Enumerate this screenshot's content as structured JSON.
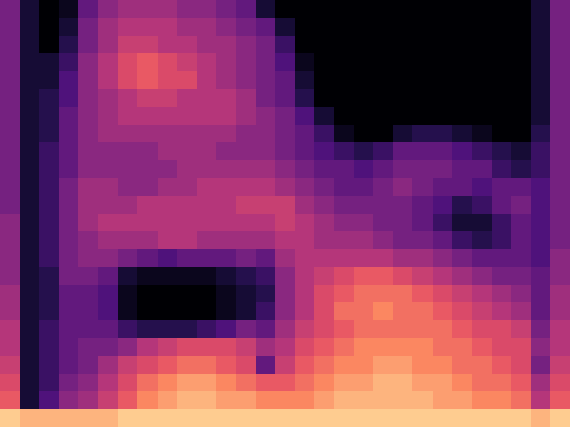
{
  "chart_data": {
    "type": "heatmap",
    "color": "magma",
    "tick_labels": false,
    "zlim": [
      0,
      1
    ],
    "cells": [
      [
        0.35,
        0.1,
        0,
        0.05,
        0.3,
        0.4,
        0.45,
        0.45,
        0.45,
        0.4,
        0.4,
        0.35,
        0.3,
        0.1,
        0,
        0,
        0,
        0,
        0,
        0,
        0,
        0,
        0,
        0,
        0,
        0,
        0,
        0.1,
        0.35
      ],
      [
        0.35,
        0.1,
        0,
        0.1,
        0.35,
        0.45,
        0.5,
        0.5,
        0.5,
        0.45,
        0.45,
        0.4,
        0.35,
        0.3,
        0.1,
        0,
        0,
        0,
        0,
        0,
        0,
        0,
        0,
        0,
        0,
        0,
        0,
        0.1,
        0.35
      ],
      [
        0.35,
        0.1,
        0,
        0.15,
        0.35,
        0.45,
        0.55,
        0.55,
        0.5,
        0.5,
        0.45,
        0.45,
        0.4,
        0.35,
        0.2,
        0,
        0,
        0,
        0,
        0,
        0,
        0,
        0,
        0,
        0,
        0,
        0,
        0.1,
        0.35
      ],
      [
        0.35,
        0.1,
        0.1,
        0.2,
        0.4,
        0.5,
        0.6,
        0.65,
        0.6,
        0.55,
        0.5,
        0.45,
        0.4,
        0.35,
        0.25,
        0.05,
        0,
        0,
        0,
        0,
        0,
        0,
        0,
        0,
        0,
        0,
        0,
        0.1,
        0.35
      ],
      [
        0.35,
        0.1,
        0.1,
        0.25,
        0.4,
        0.5,
        0.6,
        0.65,
        0.6,
        0.6,
        0.5,
        0.45,
        0.4,
        0.35,
        0.3,
        0.1,
        0,
        0,
        0,
        0,
        0,
        0,
        0,
        0,
        0,
        0,
        0,
        0.1,
        0.35
      ],
      [
        0.35,
        0.1,
        0.15,
        0.25,
        0.4,
        0.45,
        0.5,
        0.55,
        0.55,
        0.5,
        0.5,
        0.5,
        0.45,
        0.35,
        0.3,
        0.15,
        0,
        0,
        0,
        0,
        0,
        0,
        0,
        0,
        0,
        0,
        0,
        0.1,
        0.35
      ],
      [
        0.35,
        0.1,
        0.15,
        0.3,
        0.4,
        0.45,
        0.5,
        0.5,
        0.5,
        0.5,
        0.5,
        0.5,
        0.45,
        0.4,
        0.35,
        0.25,
        0.1,
        0,
        0,
        0,
        0,
        0,
        0,
        0,
        0,
        0,
        0,
        0.1,
        0.35
      ],
      [
        0.35,
        0.1,
        0.15,
        0.3,
        0.4,
        0.45,
        0.45,
        0.45,
        0.45,
        0.45,
        0.45,
        0.45,
        0.4,
        0.4,
        0.35,
        0.3,
        0.2,
        0.05,
        0,
        0,
        0.1,
        0.15,
        0.15,
        0.1,
        0.05,
        0,
        0,
        0.15,
        0.35
      ],
      [
        0.35,
        0.1,
        0.2,
        0.3,
        0.4,
        0.4,
        0.4,
        0.4,
        0.45,
        0.45,
        0.45,
        0.4,
        0.4,
        0.4,
        0.35,
        0.3,
        0.25,
        0.2,
        0.15,
        0.2,
        0.3,
        0.3,
        0.3,
        0.25,
        0.2,
        0.15,
        0.1,
        0.2,
        0.35
      ],
      [
        0.35,
        0.1,
        0.2,
        0.3,
        0.4,
        0.4,
        0.4,
        0.4,
        0.4,
        0.45,
        0.45,
        0.45,
        0.45,
        0.45,
        0.4,
        0.35,
        0.3,
        0.3,
        0.25,
        0.3,
        0.35,
        0.35,
        0.35,
        0.3,
        0.3,
        0.2,
        0.15,
        0.2,
        0.35
      ],
      [
        0.35,
        0.1,
        0.2,
        0.35,
        0.45,
        0.45,
        0.4,
        0.4,
        0.45,
        0.45,
        0.5,
        0.5,
        0.5,
        0.5,
        0.45,
        0.4,
        0.35,
        0.3,
        0.3,
        0.35,
        0.4,
        0.35,
        0.3,
        0.3,
        0.25,
        0.3,
        0.3,
        0.25,
        0.35
      ],
      [
        0.35,
        0.1,
        0.2,
        0.35,
        0.45,
        0.45,
        0.45,
        0.5,
        0.5,
        0.5,
        0.5,
        0.5,
        0.55,
        0.55,
        0.55,
        0.45,
        0.4,
        0.35,
        0.35,
        0.35,
        0.35,
        0.3,
        0.25,
        0.15,
        0.2,
        0.3,
        0.35,
        0.25,
        0.35
      ],
      [
        0.4,
        0.1,
        0.2,
        0.35,
        0.45,
        0.5,
        0.5,
        0.5,
        0.5,
        0.5,
        0.5,
        0.5,
        0.5,
        0.5,
        0.55,
        0.5,
        0.45,
        0.4,
        0.4,
        0.35,
        0.35,
        0.3,
        0.2,
        0.1,
        0.1,
        0.2,
        0.3,
        0.25,
        0.35
      ],
      [
        0.4,
        0.1,
        0.2,
        0.35,
        0.4,
        0.45,
        0.45,
        0.45,
        0.5,
        0.5,
        0.45,
        0.45,
        0.45,
        0.45,
        0.5,
        0.5,
        0.45,
        0.45,
        0.45,
        0.4,
        0.35,
        0.35,
        0.3,
        0.2,
        0.15,
        0.2,
        0.3,
        0.25,
        0.35
      ],
      [
        0.4,
        0.1,
        0.2,
        0.35,
        0.4,
        0.4,
        0.35,
        0.3,
        0.25,
        0.3,
        0.3,
        0.3,
        0.35,
        0.3,
        0.45,
        0.5,
        0.5,
        0.5,
        0.5,
        0.5,
        0.45,
        0.45,
        0.4,
        0.35,
        0.3,
        0.3,
        0.3,
        0.25,
        0.4
      ],
      [
        0.4,
        0.1,
        0.15,
        0.35,
        0.35,
        0.3,
        0.1,
        0.05,
        0.05,
        0.05,
        0.05,
        0.1,
        0.15,
        0.2,
        0.4,
        0.5,
        0.55,
        0.6,
        0.65,
        0.65,
        0.6,
        0.55,
        0.5,
        0.45,
        0.4,
        0.35,
        0.35,
        0.3,
        0.4
      ],
      [
        0.45,
        0.1,
        0.15,
        0.3,
        0.3,
        0.25,
        0.05,
        0,
        0,
        0,
        0,
        0.05,
        0.1,
        0.15,
        0.4,
        0.5,
        0.6,
        0.65,
        0.7,
        0.7,
        0.7,
        0.65,
        0.6,
        0.55,
        0.5,
        0.45,
        0.4,
        0.3,
        0.45
      ],
      [
        0.45,
        0.1,
        0.15,
        0.3,
        0.3,
        0.25,
        0.05,
        0,
        0,
        0,
        0,
        0.05,
        0.1,
        0.2,
        0.4,
        0.5,
        0.6,
        0.7,
        0.7,
        0.75,
        0.7,
        0.7,
        0.65,
        0.6,
        0.55,
        0.5,
        0.45,
        0.3,
        0.45
      ],
      [
        0.5,
        0.1,
        0.2,
        0.3,
        0.3,
        0.3,
        0.2,
        0.15,
        0.15,
        0.15,
        0.2,
        0.25,
        0.35,
        0.3,
        0.45,
        0.55,
        0.6,
        0.65,
        0.7,
        0.7,
        0.7,
        0.7,
        0.7,
        0.65,
        0.6,
        0.6,
        0.55,
        0.35,
        0.5
      ],
      [
        0.5,
        0.1,
        0.2,
        0.3,
        0.35,
        0.35,
        0.4,
        0.5,
        0.55,
        0.6,
        0.6,
        0.6,
        0.55,
        0.45,
        0.5,
        0.6,
        0.65,
        0.7,
        0.75,
        0.75,
        0.75,
        0.75,
        0.7,
        0.7,
        0.65,
        0.6,
        0.6,
        0.4,
        0.5
      ],
      [
        0.55,
        0.1,
        0.2,
        0.3,
        0.35,
        0.45,
        0.55,
        0.6,
        0.65,
        0.7,
        0.7,
        0.65,
        0.6,
        0.3,
        0.55,
        0.65,
        0.7,
        0.75,
        0.75,
        0.8,
        0.8,
        0.75,
        0.75,
        0.7,
        0.7,
        0.65,
        0.6,
        0.35,
        0.55
      ],
      [
        0.6,
        0.1,
        0.2,
        0.35,
        0.4,
        0.5,
        0.6,
        0.7,
        0.75,
        0.8,
        0.8,
        0.75,
        0.7,
        0.65,
        0.65,
        0.7,
        0.75,
        0.8,
        0.8,
        0.85,
        0.85,
        0.8,
        0.8,
        0.75,
        0.7,
        0.7,
        0.65,
        0.45,
        0.6
      ],
      [
        0.65,
        0.1,
        0.25,
        0.4,
        0.45,
        0.55,
        0.65,
        0.75,
        0.8,
        0.85,
        0.85,
        0.8,
        0.8,
        0.75,
        0.75,
        0.75,
        0.8,
        0.85,
        0.85,
        0.85,
        0.85,
        0.85,
        0.8,
        0.8,
        0.75,
        0.75,
        0.7,
        0.5,
        0.65
      ],
      [
        0.9,
        0.85,
        0.85,
        0.85,
        0.85,
        0.85,
        0.9,
        0.9,
        0.9,
        0.9,
        0.9,
        0.9,
        0.9,
        0.9,
        0.9,
        0.9,
        0.9,
        0.9,
        0.9,
        0.9,
        0.9,
        0.9,
        0.9,
        0.9,
        0.9,
        0.9,
        0.9,
        0.85,
        0.9
      ]
    ]
  }
}
